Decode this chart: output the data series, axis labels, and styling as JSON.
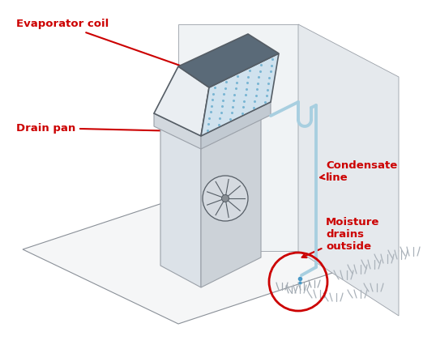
{
  "bg_color": "#ffffff",
  "line_color": "#9aa0a8",
  "dark_line": "#555d65",
  "wall_face_color": "#eaedf0",
  "wall_side_color": "#dde0e4",
  "unit_left_color": "#dde2e8",
  "unit_right_color": "#cdd3da",
  "unit_top_color": "#e8ecf0",
  "pan_left_color": "#d4dae0",
  "pan_right_color": "#c5ccd4",
  "pan_top_color": "#dde4ea",
  "coil_front_color": "#d8e4ee",
  "coil_right_color": "#c0d4e4",
  "coil_top_color": "#6a7a88",
  "coil_dot_color": "#7aaccf",
  "floor_color": "#f4f5f7",
  "pipe_color": "#a8cfe0",
  "label_color": "#cc0000",
  "circle_color": "#cc0000",
  "grass_color": "#a8b0b8",
  "drop_color": "#4a9ac8",
  "labels": {
    "evaporator_coil": "Evaporator coil",
    "drain_pan": "Drain pan",
    "condensate_line": "Condensate\nline",
    "moisture": "Moisture\ndrains\noutside"
  }
}
